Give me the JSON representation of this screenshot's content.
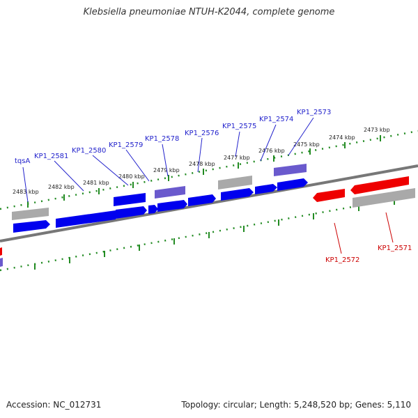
{
  "title": "Klebsiella pneumoniae NTUH-K2044, complete genome",
  "accession": "Accession: NC_012731",
  "summary": "Topology: circular; Length: 5,248,520 bp; Genes: 5,110",
  "colors": {
    "forward_gene": "#0000ee",
    "forward_gene_light": "#6a5acd",
    "reverse_gene": "#ee0000",
    "pseudo_gene": "#a9a9a9",
    "backbone": "#777777",
    "tick": "#228b22",
    "label_fwd": "#2222cc",
    "label_rev": "#cc0000"
  },
  "ticks": [
    "2473 kbp",
    "2474 kbp",
    "2475 kbp",
    "2476 kbp",
    "2477 kbp",
    "2478 kbp",
    "2479 kbp",
    "2480 kbp",
    "2481 kbp",
    "2482 kbp",
    "2483 kbp"
  ],
  "genes_forward": [
    "tqsA",
    "KP1_2581",
    "KP1_2580",
    "KP1_2579",
    "KP1_2578",
    "KP1_2576",
    "KP1_2575",
    "KP1_2574",
    "KP1_2573"
  ],
  "genes_reverse": [
    "KP1_2572",
    "KP1_2571"
  ]
}
